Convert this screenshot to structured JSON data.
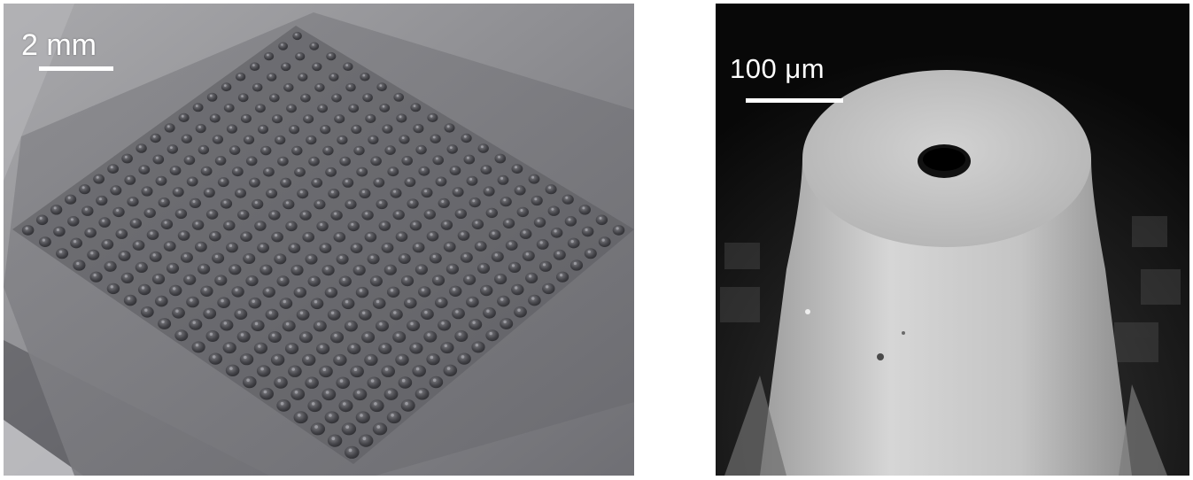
{
  "figure": {
    "panels": [
      {
        "scale_label": "2 mm"
      },
      {
        "scale_label": "100 μm"
      }
    ]
  }
}
